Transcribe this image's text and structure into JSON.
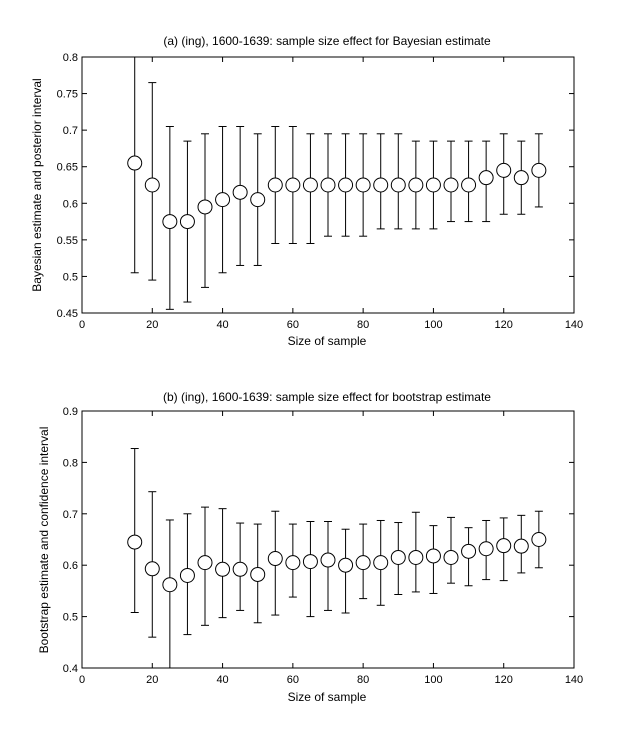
{
  "chart_data": [
    {
      "type": "scatter",
      "title": "(a) (ing), 1600-1639: sample size effect for Bayesian estimate",
      "xlabel": "Size of sample",
      "ylabel": "Bayesian estimate and posterior interval",
      "xlim": [
        0,
        140
      ],
      "ylim": [
        0.45,
        0.8
      ],
      "xticks": [
        "0",
        "20",
        "40",
        "60",
        "80",
        "100",
        "120",
        "140"
      ],
      "yticks": [
        "0.45",
        "0.5",
        "0.55",
        "0.6",
        "0.65",
        "0.7",
        "0.75",
        "0.8"
      ],
      "grid": false,
      "x": [
        15,
        20,
        25,
        30,
        35,
        40,
        45,
        50,
        55,
        60,
        65,
        70,
        75,
        80,
        85,
        90,
        95,
        100,
        105,
        110,
        115,
        120,
        125,
        130
      ],
      "y": [
        0.655,
        0.625,
        0.575,
        0.575,
        0.595,
        0.605,
        0.615,
        0.605,
        0.625,
        0.625,
        0.625,
        0.625,
        0.625,
        0.625,
        0.625,
        0.625,
        0.625,
        0.625,
        0.625,
        0.625,
        0.635,
        0.645,
        0.635,
        0.645
      ],
      "lower": [
        0.505,
        0.495,
        0.455,
        0.465,
        0.485,
        0.505,
        0.515,
        0.515,
        0.545,
        0.545,
        0.545,
        0.555,
        0.555,
        0.555,
        0.565,
        0.565,
        0.565,
        0.565,
        0.575,
        0.575,
        0.575,
        0.585,
        0.585,
        0.595
      ],
      "upper": [
        0.8,
        0.765,
        0.705,
        0.685,
        0.695,
        0.705,
        0.705,
        0.695,
        0.705,
        0.705,
        0.695,
        0.695,
        0.695,
        0.695,
        0.695,
        0.695,
        0.685,
        0.685,
        0.685,
        0.685,
        0.685,
        0.695,
        0.685,
        0.695
      ]
    },
    {
      "type": "scatter",
      "title": "(b) (ing), 1600-1639: sample size effect for bootstrap estimate",
      "xlabel": "Size of sample",
      "ylabel": "Bootstrap estimate and confidence interval",
      "xlim": [
        0,
        140
      ],
      "ylim": [
        0.4,
        0.9
      ],
      "xticks": [
        "0",
        "20",
        "40",
        "60",
        "80",
        "100",
        "120",
        "140"
      ],
      "yticks": [
        "0.4",
        "0.5",
        "0.6",
        "0.7",
        "0.8",
        "0.9"
      ],
      "grid": false,
      "x": [
        15,
        20,
        25,
        30,
        35,
        40,
        45,
        50,
        55,
        60,
        65,
        70,
        75,
        80,
        85,
        90,
        95,
        100,
        105,
        110,
        115,
        120,
        125,
        130
      ],
      "y": [
        0.645,
        0.593,
        0.562,
        0.58,
        0.605,
        0.592,
        0.592,
        0.582,
        0.613,
        0.605,
        0.607,
        0.61,
        0.6,
        0.605,
        0.605,
        0.615,
        0.615,
        0.618,
        0.615,
        0.627,
        0.632,
        0.638,
        0.637,
        0.65
      ],
      "lower": [
        0.508,
        0.46,
        0.4,
        0.465,
        0.483,
        0.498,
        0.512,
        0.488,
        0.503,
        0.538,
        0.5,
        0.512,
        0.507,
        0.535,
        0.522,
        0.543,
        0.548,
        0.545,
        0.565,
        0.56,
        0.572,
        0.57,
        0.585,
        0.595
      ],
      "upper": [
        0.827,
        0.743,
        0.688,
        0.7,
        0.713,
        0.71,
        0.682,
        0.68,
        0.705,
        0.68,
        0.685,
        0.685,
        0.67,
        0.68,
        0.687,
        0.683,
        0.703,
        0.677,
        0.693,
        0.673,
        0.687,
        0.692,
        0.697,
        0.705
      ]
    }
  ]
}
